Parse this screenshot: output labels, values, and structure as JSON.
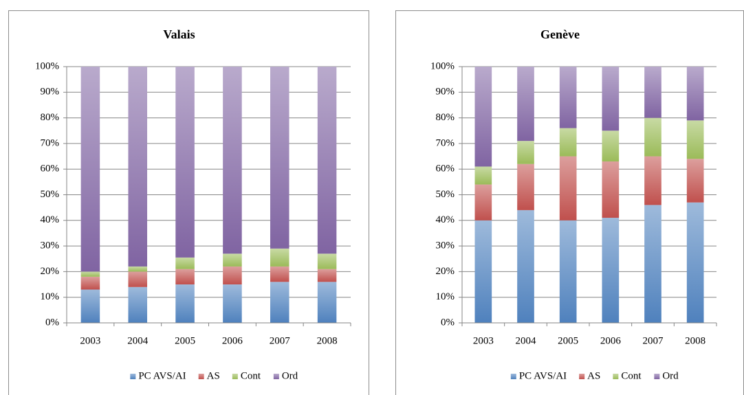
{
  "chart_data": [
    {
      "type": "stacked_bar",
      "title": "Valais",
      "categories": [
        "2003",
        "2004",
        "2005",
        "2006",
        "2007",
        "2008"
      ],
      "series": [
        {
          "name": "PC AVS/AI",
          "color": "#4f81bd",
          "values": [
            13,
            14,
            15,
            15,
            16,
            16
          ]
        },
        {
          "name": "AS",
          "color": "#c0504d",
          "values": [
            5,
            6,
            6,
            7,
            6,
            5
          ]
        },
        {
          "name": "Cont",
          "color": "#9bbb59",
          "values": [
            2,
            2,
            4.5,
            5,
            7,
            6
          ]
        },
        {
          "name": "Ord",
          "color": "#8064a2",
          "values": [
            80,
            78,
            74.5,
            73,
            71,
            73
          ]
        }
      ],
      "ylim": [
        0,
        100
      ],
      "yticks": [
        {
          "value": 0,
          "label": "0%"
        },
        {
          "value": 10,
          "label": "10%"
        },
        {
          "value": 20,
          "label": "20%"
        },
        {
          "value": 30,
          "label": "30%"
        },
        {
          "value": 40,
          "label": "40%"
        },
        {
          "value": 50,
          "label": "50%"
        },
        {
          "value": 60,
          "label": "60%"
        },
        {
          "value": 70,
          "label": "70%"
        },
        {
          "value": 80,
          "label": "80%"
        },
        {
          "value": 90,
          "label": "90%"
        },
        {
          "value": 100,
          "label": "100%"
        }
      ],
      "grid": true,
      "legend": "bottom"
    },
    {
      "type": "stacked_bar",
      "title": "Genève",
      "categories": [
        "2003",
        "2004",
        "2005",
        "2006",
        "2007",
        "2008"
      ],
      "series": [
        {
          "name": "PC AVS/AI",
          "color": "#4f81bd",
          "values": [
            40,
            44,
            40,
            41,
            46,
            47
          ]
        },
        {
          "name": "AS",
          "color": "#c0504d",
          "values": [
            14,
            18,
            25,
            22,
            19,
            17
          ]
        },
        {
          "name": "Cont",
          "color": "#9bbb59",
          "values": [
            7,
            9,
            11,
            12,
            15,
            15
          ]
        },
        {
          "name": "Ord",
          "color": "#8064a2",
          "values": [
            39,
            29,
            24,
            25,
            20,
            21
          ]
        }
      ],
      "ylim": [
        0,
        100
      ],
      "yticks": [
        {
          "value": 0,
          "label": "0%"
        },
        {
          "value": 10,
          "label": "10%"
        },
        {
          "value": 20,
          "label": "20%"
        },
        {
          "value": 30,
          "label": "30%"
        },
        {
          "value": 40,
          "label": "40%"
        },
        {
          "value": 50,
          "label": "50%"
        },
        {
          "value": 60,
          "label": "60%"
        },
        {
          "value": 70,
          "label": "70%"
        },
        {
          "value": 80,
          "label": "80%"
        },
        {
          "value": 90,
          "label": "90%"
        },
        {
          "value": 100,
          "label": "100%"
        }
      ],
      "grid": true,
      "legend": "bottom"
    }
  ]
}
